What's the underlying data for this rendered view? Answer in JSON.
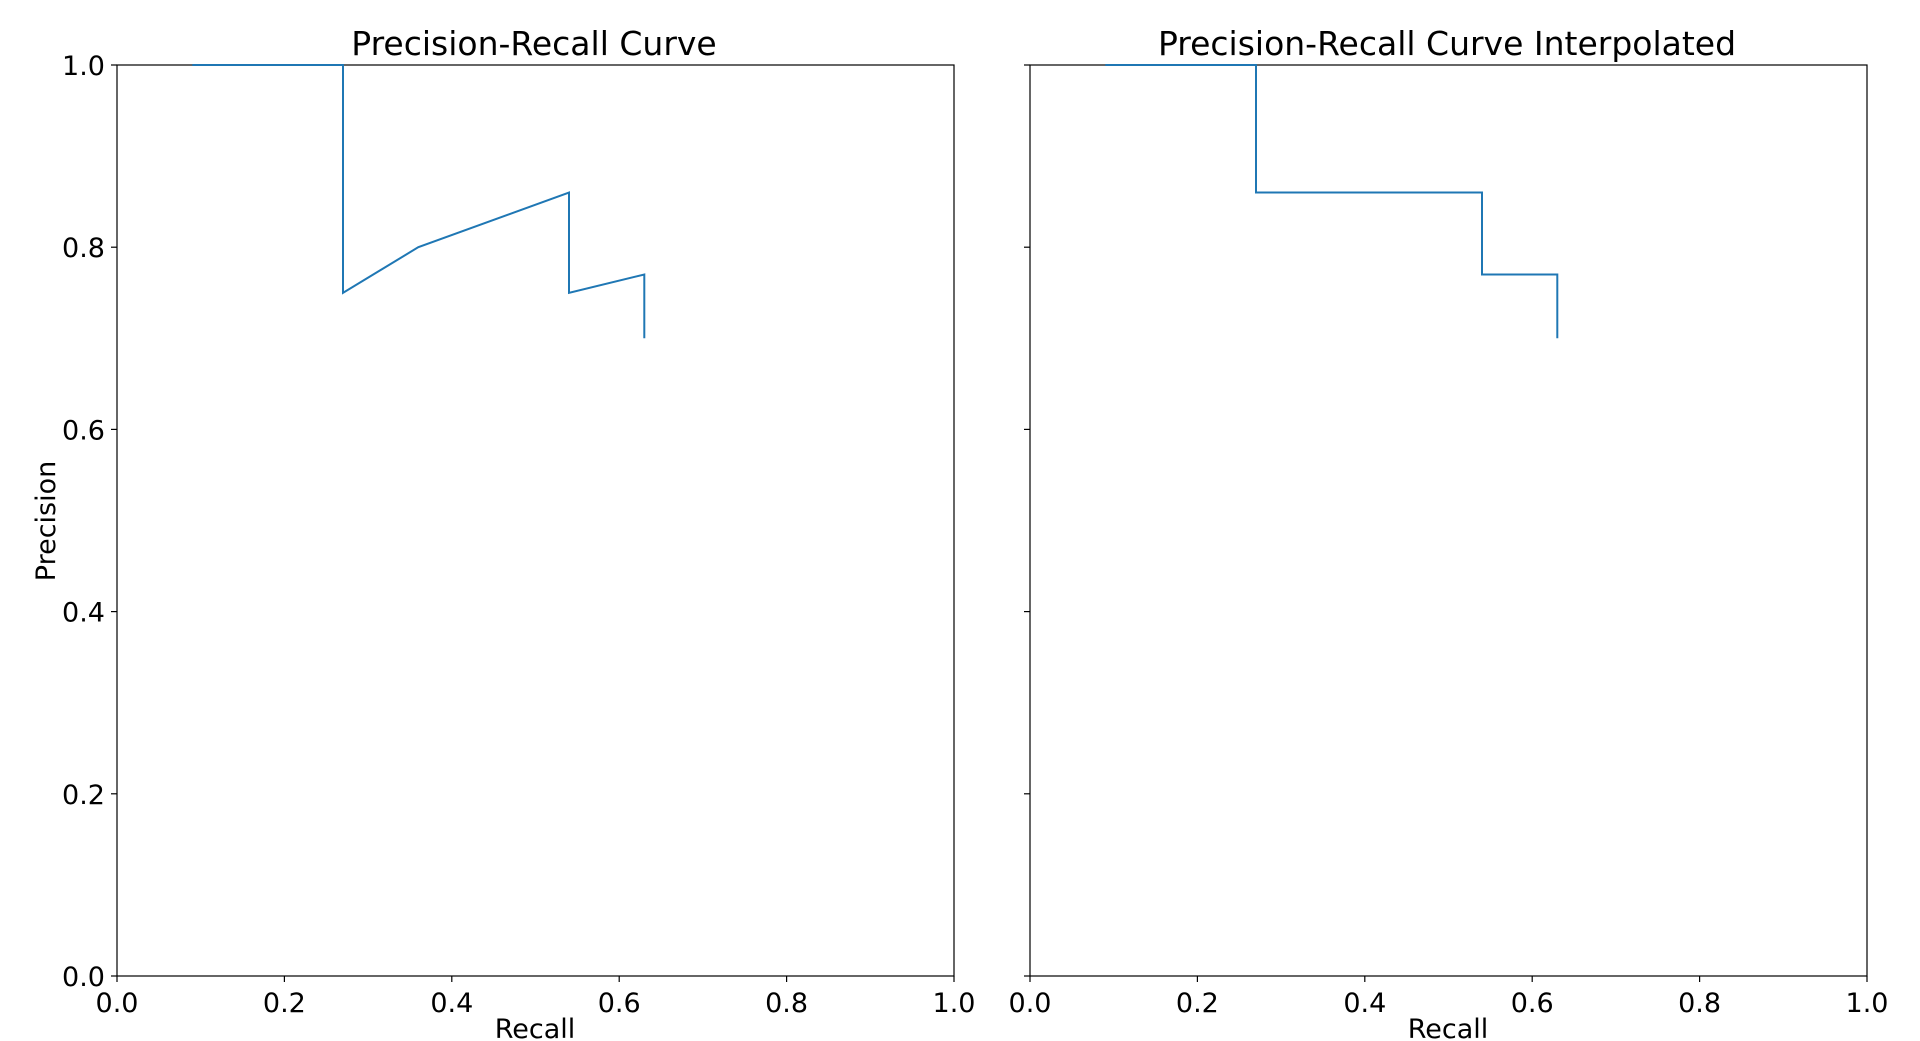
{
  "chart_data": [
    {
      "type": "line",
      "title": "Precision-Recall Curve",
      "xlabel": "Recall",
      "ylabel": "Precision",
      "xlim": [
        0.0,
        1.0
      ],
      "ylim": [
        0.0,
        1.0
      ],
      "xticks": [
        "0.0",
        "0.2",
        "0.4",
        "0.6",
        "0.8",
        "1.0"
      ],
      "yticks": [
        "0.0",
        "0.2",
        "0.4",
        "0.6",
        "0.8",
        "1.0"
      ],
      "show_yticklabels": true,
      "grid": false,
      "series": [
        {
          "color": "#1f77b4",
          "x": [
            0.09,
            0.27,
            0.27,
            0.36,
            0.54,
            0.54,
            0.63,
            0.63
          ],
          "y": [
            1.0,
            1.0,
            0.75,
            0.8,
            0.86,
            0.75,
            0.77,
            0.7
          ]
        }
      ]
    },
    {
      "type": "line",
      "title": "Precision-Recall Curve Interpolated",
      "xlabel": "Recall",
      "ylabel": "",
      "xlim": [
        0.0,
        1.0
      ],
      "ylim": [
        0.0,
        1.0
      ],
      "xticks": [
        "0.0",
        "0.2",
        "0.4",
        "0.6",
        "0.8",
        "1.0"
      ],
      "yticks": [
        "0.0",
        "0.2",
        "0.4",
        "0.6",
        "0.8",
        "1.0"
      ],
      "show_yticklabels": false,
      "grid": false,
      "series": [
        {
          "color": "#1f77b4",
          "x": [
            0.09,
            0.27,
            0.27,
            0.54,
            0.54,
            0.63,
            0.63
          ],
          "y": [
            1.0,
            1.0,
            0.86,
            0.86,
            0.77,
            0.77,
            0.7
          ]
        }
      ]
    }
  ]
}
